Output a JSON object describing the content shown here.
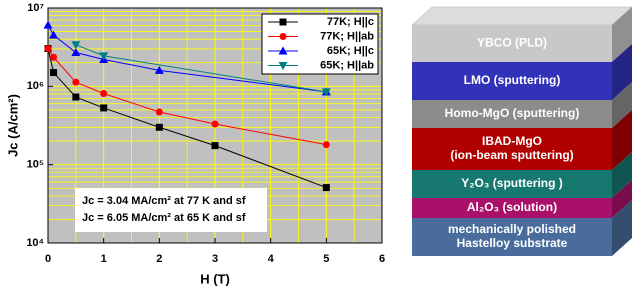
{
  "chart_data": {
    "type": "line",
    "log_y": true,
    "grid": true,
    "legend": "upper right",
    "x_label": "H (T)",
    "y_label": "Jc (A/cm²)",
    "xlim": [
      0,
      6
    ],
    "xticks": [
      0,
      1,
      2,
      3,
      4,
      5,
      6
    ],
    "ylim": [
      10000,
      10000000
    ],
    "yticks": [
      {
        "value": 10000,
        "label": "10⁴"
      },
      {
        "value": 100000,
        "label": "10⁵"
      },
      {
        "value": 1000000,
        "label": "10⁶"
      },
      {
        "value": 10000000,
        "label": "10⁷"
      }
    ],
    "series": [
      {
        "name": "77K; H||c",
        "color": "#000000",
        "marker": "square",
        "x": [
          0,
          0.1,
          0.5,
          1,
          2,
          3,
          5
        ],
        "values": [
          3040000,
          1500000,
          730000,
          530000,
          300000,
          175000,
          51000
        ]
      },
      {
        "name": "77K; H||ab",
        "color": "#ff0000",
        "marker": "circle",
        "x": [
          0,
          0.1,
          0.5,
          1,
          2,
          3,
          5
        ],
        "values": [
          3040000,
          2350000,
          1130000,
          810000,
          470000,
          330000,
          180000
        ]
      },
      {
        "name": "65K; H||c",
        "color": "#0000ff",
        "marker": "triangle-up",
        "x": [
          0,
          0.1,
          0.5,
          1,
          2,
          5
        ],
        "values": [
          6050000,
          4500000,
          2700000,
          2200000,
          1600000,
          850000
        ]
      },
      {
        "name": "65K; H||ab",
        "color": "#008080",
        "marker": "triangle-down",
        "x": [
          0.5,
          1,
          5
        ],
        "values": [
          3400000,
          2450000,
          850000
        ]
      }
    ],
    "annotations": [
      "Jc = 3.04 MA/cm² at 77 K and sf",
      "Jc = 6.05 MA/cm² at 65 K and sf"
    ]
  },
  "diagram": {
    "layers": [
      {
        "lines": [
          "YBCO (PLD)"
        ],
        "color": "#c8c8c8",
        "text_color": "#000000"
      },
      {
        "lines": [
          "LMO  (sputtering)"
        ],
        "color": "#3232b8",
        "text_color": "#ffffff"
      },
      {
        "lines": [
          "Homo-MgO  (sputtering)"
        ],
        "color": "#8c8c8c",
        "text_color": "#ffffff"
      },
      {
        "lines": [
          "IBAD-MgO",
          "(ion-beam sputtering)"
        ],
        "color": "#b00000",
        "text_color": "#ffffff"
      },
      {
        "lines": [
          "Y₂O₃  (sputtering )"
        ],
        "color": "#16786f",
        "text_color": "#ffffff"
      },
      {
        "lines": [
          "Al₂O₃ (solution)"
        ],
        "color": "#a8106a",
        "text_color": "#ffffff"
      },
      {
        "lines": [
          "mechanically polished",
          "Hastelloy substrate"
        ],
        "color": "#4a6c9c",
        "text_color": "#ffffff"
      }
    ]
  }
}
